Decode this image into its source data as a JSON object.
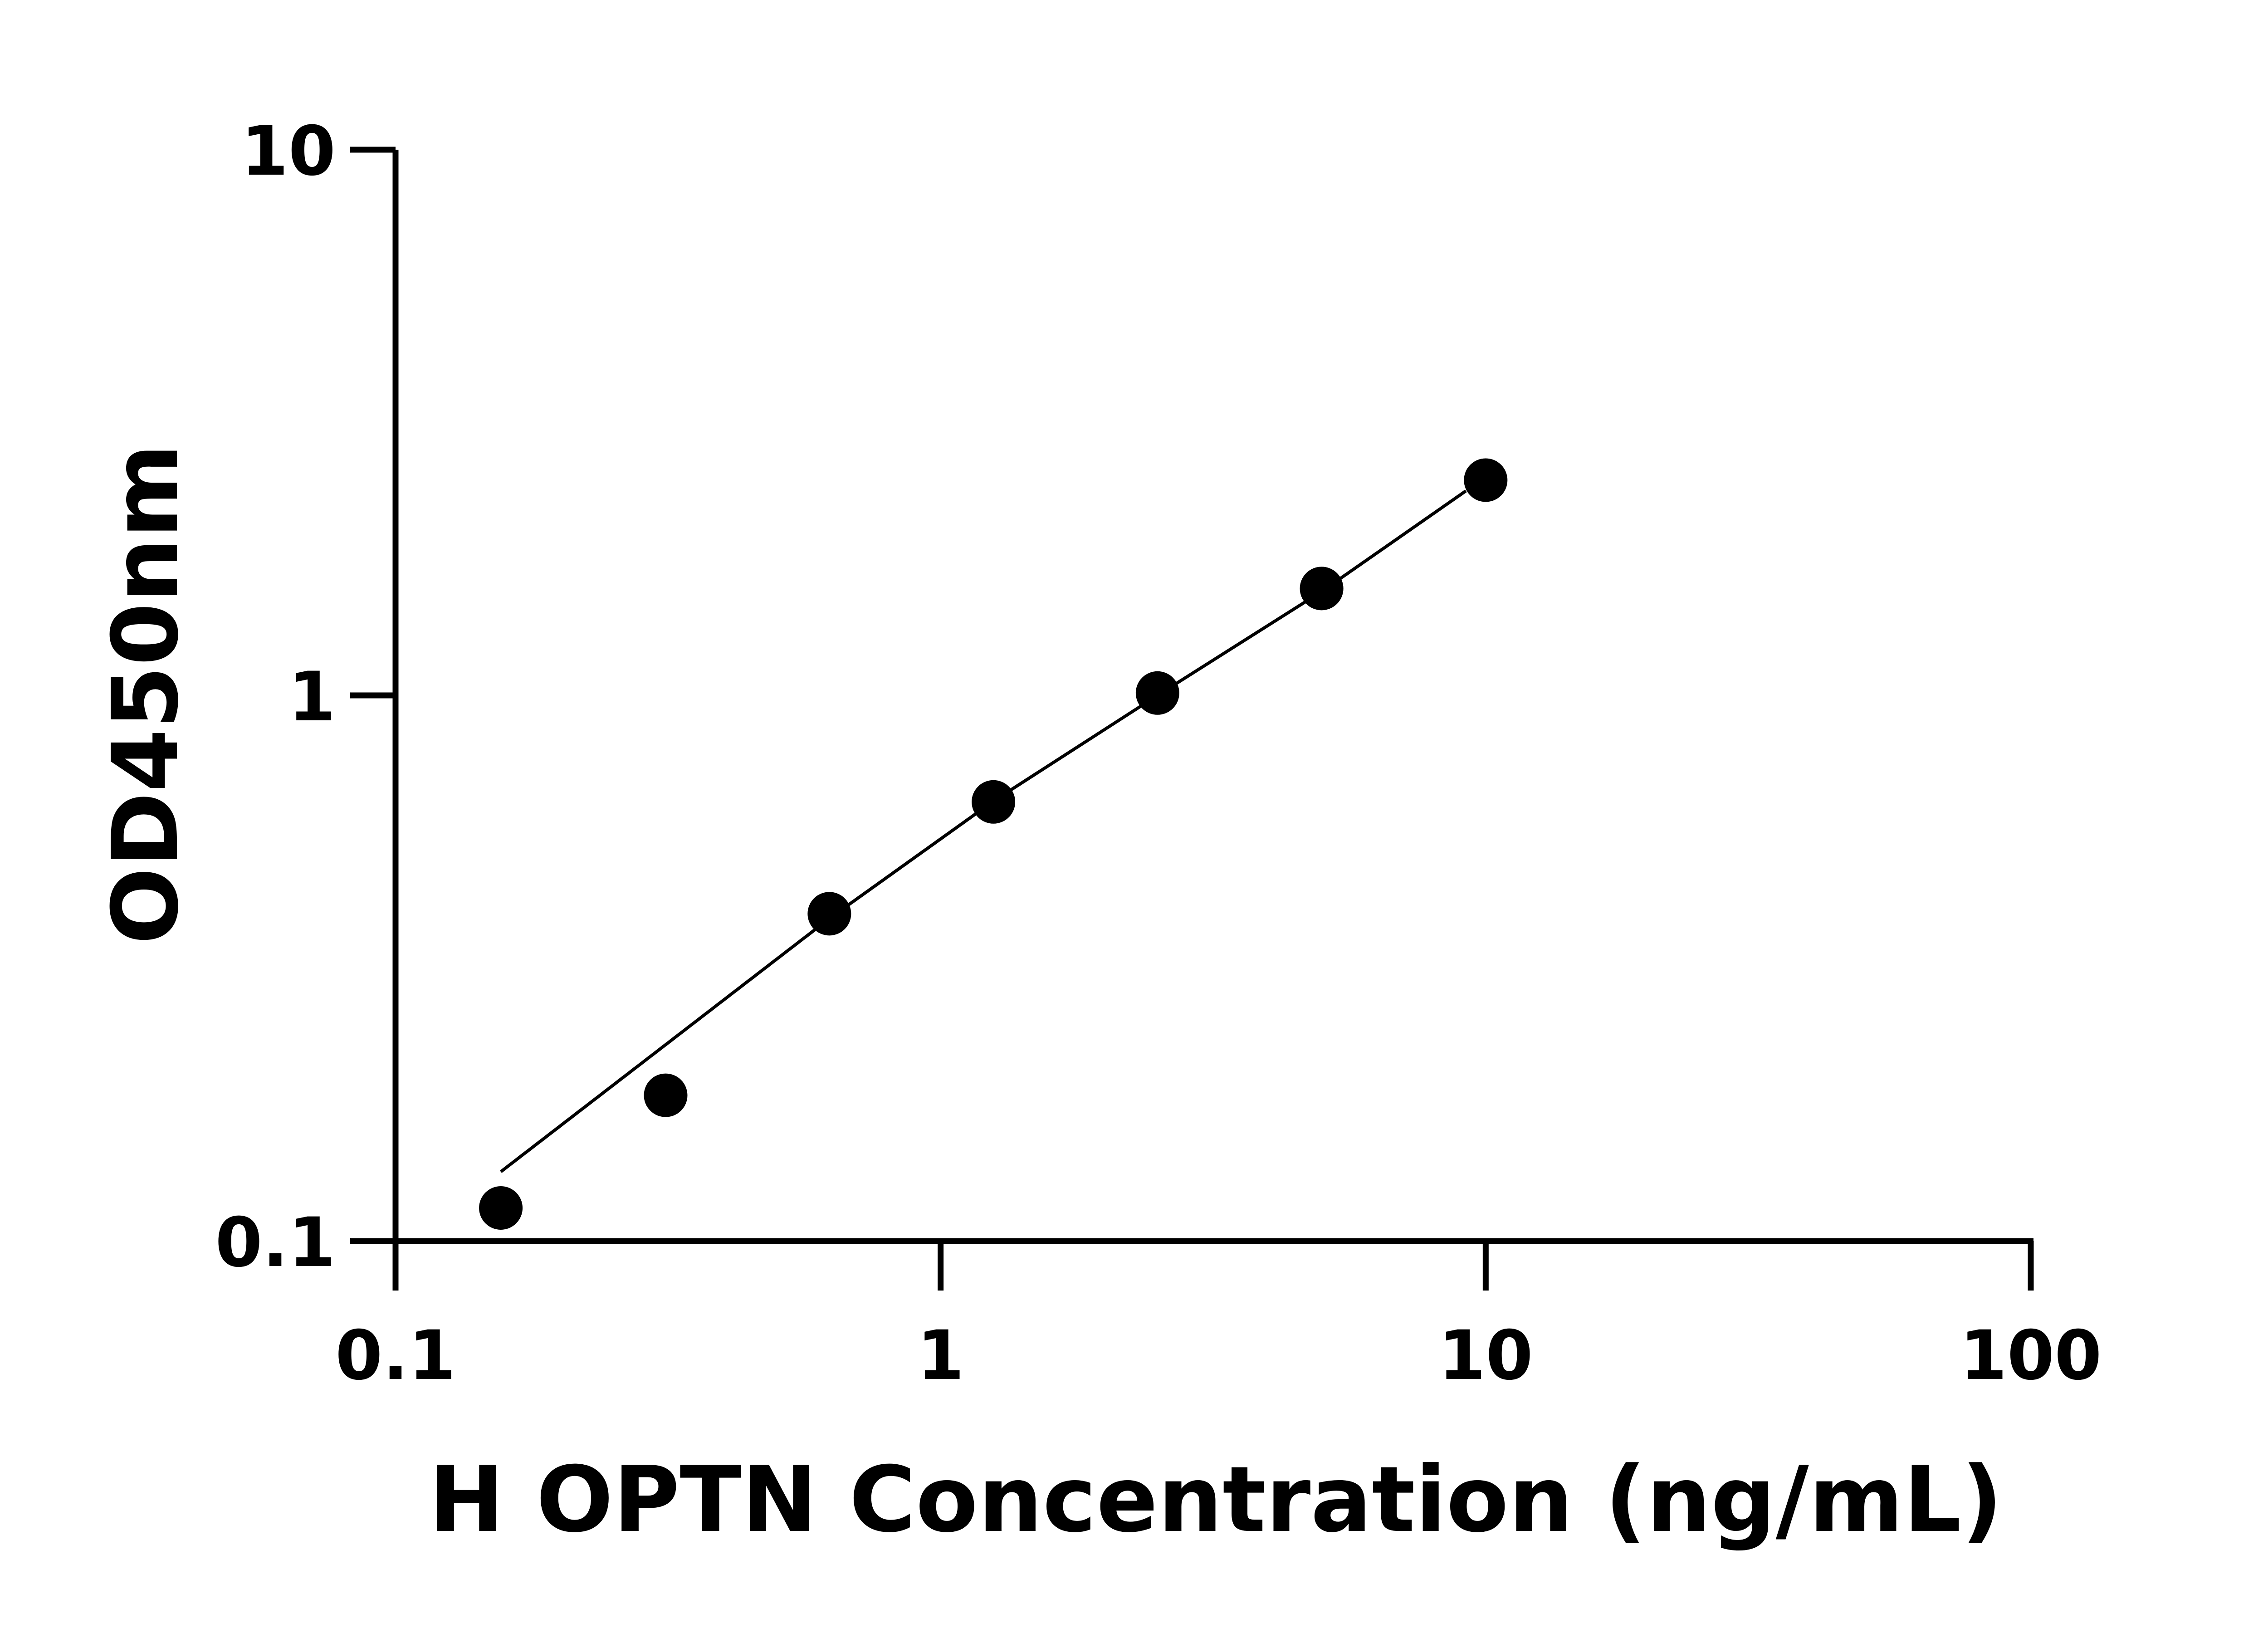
{
  "chart_data": {
    "type": "scatter",
    "title": "",
    "xlabel": "H OPTN Concentration (ng/mL)",
    "ylabel": "OD450nm",
    "xscale": "log",
    "yscale": "log",
    "xlim": [
      0.1,
      100
    ],
    "ylim": [
      0.1,
      10
    ],
    "xticks": [
      "0.1",
      "1",
      "10",
      "100"
    ],
    "yticks": [
      "0.1",
      "1",
      "10"
    ],
    "grid": false,
    "marker_color": "#000000",
    "points": [
      {
        "x": 0.156,
        "y": 0.115
      },
      {
        "x": 0.313,
        "y": 0.185
      },
      {
        "x": 0.625,
        "y": 0.398
      },
      {
        "x": 1.25,
        "y": 0.638
      },
      {
        "x": 2.5,
        "y": 1.01
      },
      {
        "x": 5,
        "y": 1.57
      },
      {
        "x": 10,
        "y": 2.48
      }
    ],
    "fit_line": [
      {
        "x": 0.156,
        "y": 0.134
      },
      {
        "x": 0.625,
        "y": 0.39
      },
      {
        "x": 1.25,
        "y": 0.64
      },
      {
        "x": 2.5,
        "y": 1.0
      },
      {
        "x": 5,
        "y": 1.55
      },
      {
        "x": 9.2,
        "y": 2.37
      }
    ]
  }
}
